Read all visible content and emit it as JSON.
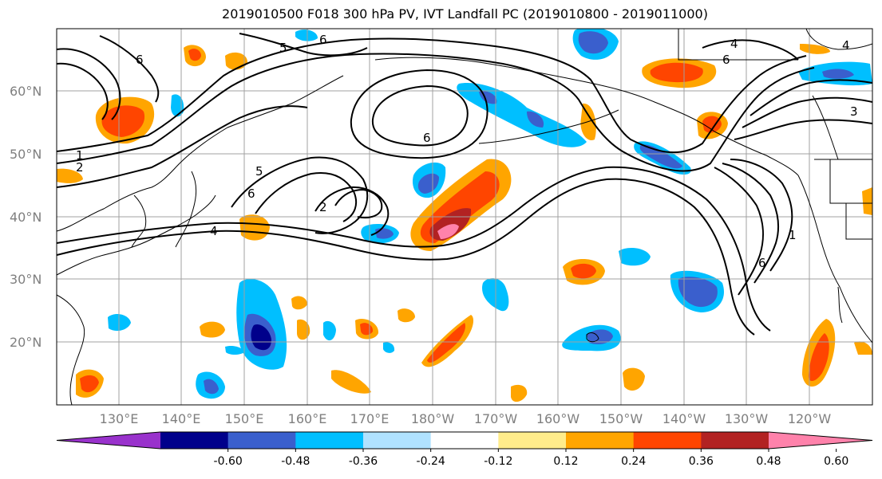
{
  "title": "2019010500 F018 300 hPa PV, IVT Landfall PC (2019010800 - 2019011000)",
  "map": {
    "lat_labels": [
      "60°N",
      "50°N",
      "40°N",
      "30°N",
      "20°N"
    ],
    "lon_labels": [
      "130°E",
      "140°E",
      "150°E",
      "160°E",
      "170°E",
      "180°W",
      "170°W",
      "160°W",
      "150°W",
      "140°W",
      "130°W",
      "120°W"
    ],
    "contour_labels": [
      "1",
      "2",
      "3",
      "4",
      "5",
      "6"
    ]
  },
  "colorbar": {
    "colors": [
      "#9932cc",
      "#00008b",
      "#3a5fcd",
      "#00bfff",
      "#b0e2ff",
      "#ffffff",
      "#ffec8b",
      "#ffa500",
      "#ff4500",
      "#b22222",
      "#ff82ab"
    ],
    "tick_labels": [
      "-0.60",
      "-0.48",
      "-0.36",
      "-0.24",
      "-0.12",
      "0.12",
      "0.24",
      "0.36",
      "0.48",
      "0.60"
    ]
  },
  "colors": {
    "contour": "#000000",
    "grid": "#a0a0a0",
    "axis_label": "#7f7f7f"
  }
}
